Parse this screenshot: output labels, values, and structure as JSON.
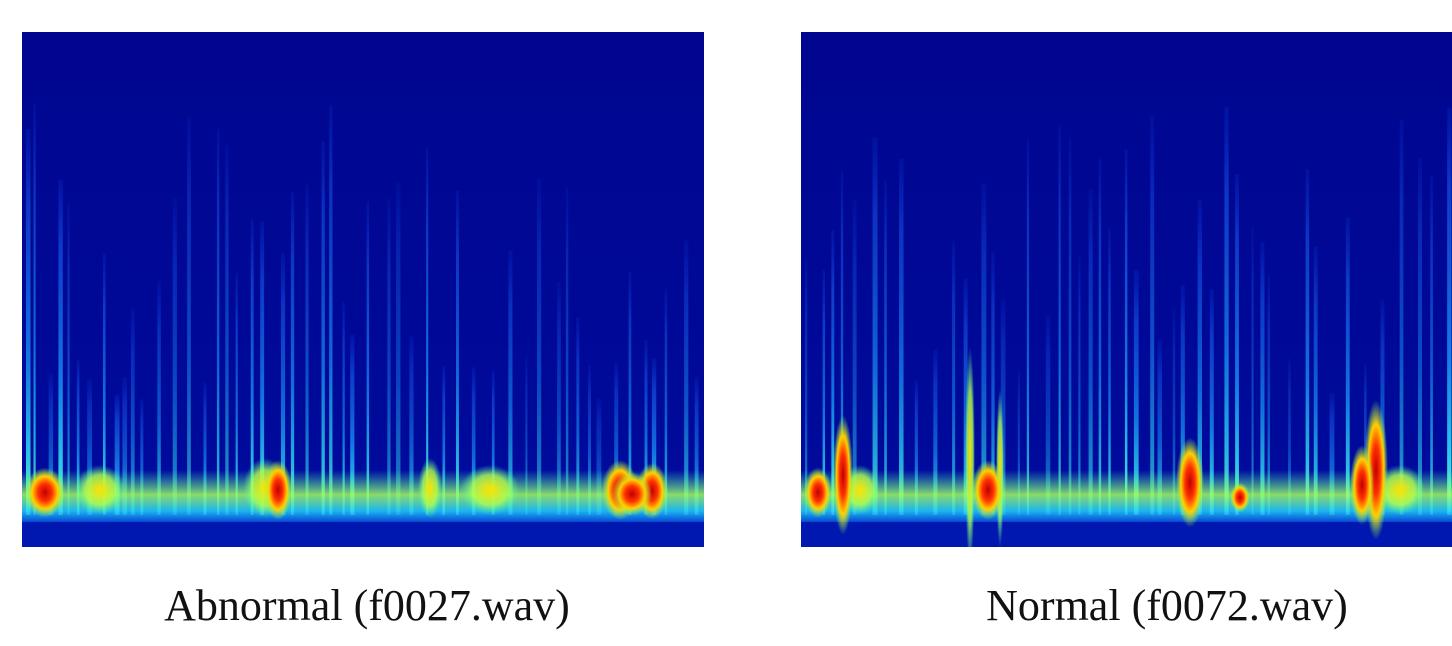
{
  "figures": [
    {
      "caption": "Abnormal (f0027.wav)"
    },
    {
      "caption": "Normal (f0072.wav)"
    }
  ]
}
